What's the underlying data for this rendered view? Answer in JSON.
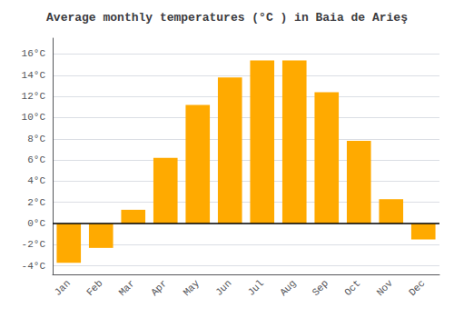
{
  "chart_data": {
    "type": "bar",
    "title": "Average monthly temperatures (°C ) in Baia de Arieş",
    "categories": [
      "Jan",
      "Feb",
      "Mar",
      "Apr",
      "May",
      "Jun",
      "Jul",
      "Aug",
      "Sep",
      "Oct",
      "Nov",
      "Dec"
    ],
    "values": [
      -3.7,
      -2.3,
      1.3,
      6.2,
      11.2,
      13.8,
      15.4,
      15.4,
      12.4,
      7.8,
      2.3,
      -1.5
    ],
    "color": "#FFAA00",
    "ylim": [
      -4.8,
      17.5
    ],
    "yticks": [
      {
        "value": -4,
        "label": "-4°C"
      },
      {
        "value": -2,
        "label": "-2°C"
      },
      {
        "value": 0,
        "label": "0°C"
      },
      {
        "value": 2,
        "label": "2°C"
      },
      {
        "value": 4,
        "label": "4°C"
      },
      {
        "value": 6,
        "label": "6°C"
      },
      {
        "value": 8,
        "label": "8°C"
      },
      {
        "value": 10,
        "label": "10°C"
      },
      {
        "value": 12,
        "label": "12°C"
      },
      {
        "value": 14,
        "label": "14°C"
      },
      {
        "value": 16,
        "label": "16°C"
      }
    ],
    "grid": true
  }
}
